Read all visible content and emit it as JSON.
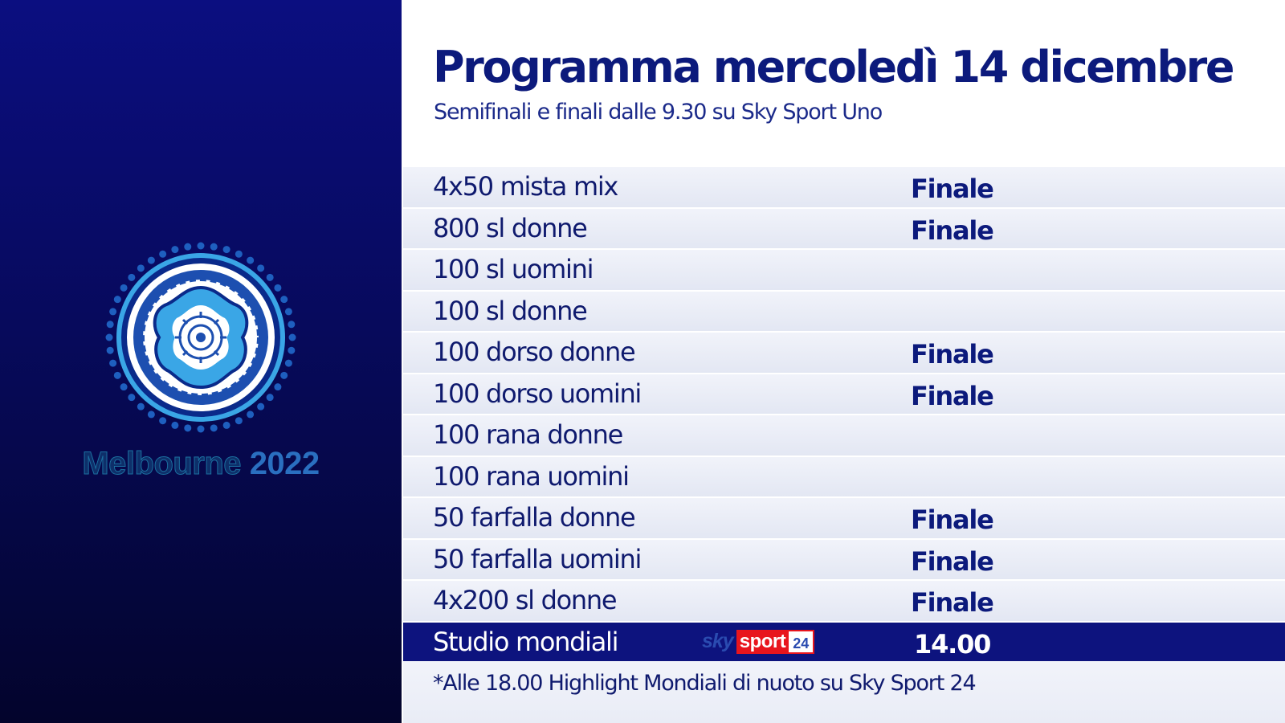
{
  "emblem": {
    "icon": "melbourne-2022-emblem-icon",
    "city": "Melbourne",
    "year": "2022"
  },
  "header": {
    "title": "Programma mercoledì 14 dicembre",
    "subtitle": "Semifinali e finali dalle 9.30 su Sky Sport Uno"
  },
  "schedule": [
    {
      "event": "4x50 mista mix",
      "stage": "Finale"
    },
    {
      "event": "800 sl donne",
      "stage": "Finale"
    },
    {
      "event": "100 sl uomini",
      "stage": ""
    },
    {
      "event": "100 sl donne",
      "stage": ""
    },
    {
      "event": "100 dorso donne",
      "stage": "Finale"
    },
    {
      "event": "100 dorso uomini",
      "stage": "Finale"
    },
    {
      "event": "100 rana donne",
      "stage": ""
    },
    {
      "event": "100 rana uomini",
      "stage": ""
    },
    {
      "event": "50 farfalla donne",
      "stage": "Finale"
    },
    {
      "event": "50 farfalla uomini",
      "stage": "Finale"
    },
    {
      "event": "4x200 sl donne",
      "stage": "Finale"
    }
  ],
  "studio": {
    "event": "Studio mondiali",
    "time": "14.00",
    "channel": {
      "sky": "sky",
      "sport": "sport",
      "number": "24"
    }
  },
  "footnote": "*Alle 18.00 Highlight Mondiali di nuoto su Sky Sport 24",
  "colors": {
    "title": "#0c1a7c",
    "studio_bar": "#0d137e",
    "sky_red": "#e8151d",
    "left_panel_top": "#0b0e80"
  }
}
